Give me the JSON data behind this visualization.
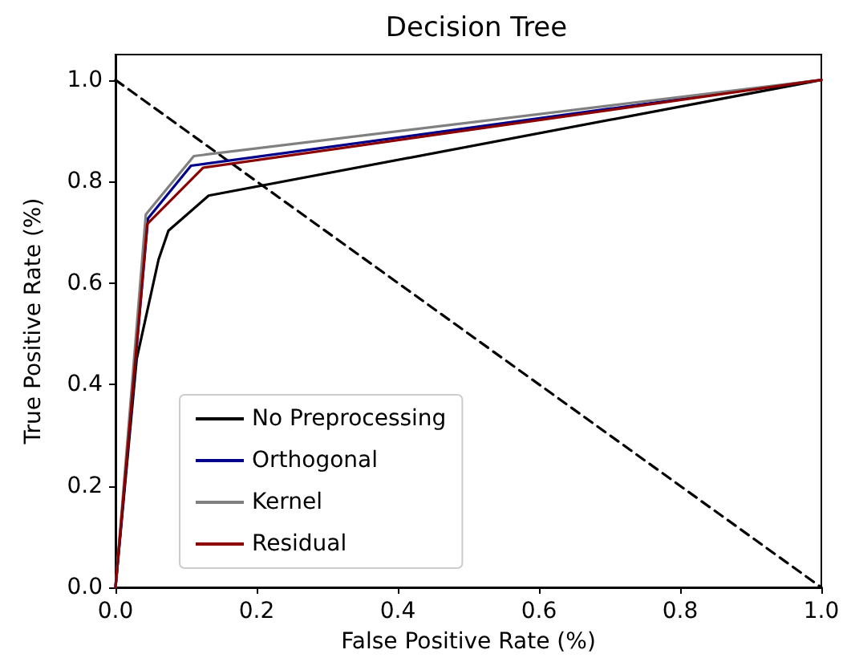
{
  "chart_data": {
    "type": "line",
    "title": "Decision Tree",
    "xlabel": "False Positive Rate (%)",
    "ylabel": "True Positive Rate (%)",
    "xlim": [
      0,
      1
    ],
    "ylim": [
      0,
      1.05
    ],
    "xticks": [
      {
        "value": 0,
        "label": "0.0"
      },
      {
        "value": 0.2,
        "label": "0.2"
      },
      {
        "value": 0.4,
        "label": "0.4"
      },
      {
        "value": 0.6,
        "label": "0.6"
      },
      {
        "value": 0.8,
        "label": "0.8"
      },
      {
        "value": 1,
        "label": "1.0"
      }
    ],
    "yticks": [
      {
        "value": 0,
        "label": "0.0"
      },
      {
        "value": 0.2,
        "label": "0.2"
      },
      {
        "value": 0.4,
        "label": "0.4"
      },
      {
        "value": 0.6,
        "label": "0.6"
      },
      {
        "value": 0.8,
        "label": "0.8"
      },
      {
        "value": 1,
        "label": "1.0"
      }
    ],
    "grid": false,
    "legend": "bottom left",
    "marker": "none",
    "series": [
      {
        "name": "No Preprocessing",
        "color": "#000000",
        "x": [
          0,
          0.03,
          0.061,
          0.075,
          0.132,
          1
        ],
        "values": [
          0,
          0.45,
          0.646,
          0.703,
          0.772,
          1
        ]
      },
      {
        "name": "Orthogonal",
        "color": "#00008b",
        "x": [
          0,
          0.046,
          0.107,
          1
        ],
        "values": [
          0,
          0.727,
          0.831,
          1
        ]
      },
      {
        "name": "Kernel",
        "color": "#808080",
        "x": [
          0,
          0.043,
          0.111,
          1
        ],
        "values": [
          0,
          0.735,
          0.85,
          1
        ]
      },
      {
        "name": "Residual",
        "color": "#8b0000",
        "x": [
          0,
          0.045,
          0.124,
          1
        ],
        "values": [
          0,
          0.716,
          0.827,
          1
        ]
      },
      {
        "color": "#000000",
        "line_style": "dashed",
        "x": [
          0,
          1
        ],
        "values": [
          1,
          0
        ]
      }
    ]
  }
}
